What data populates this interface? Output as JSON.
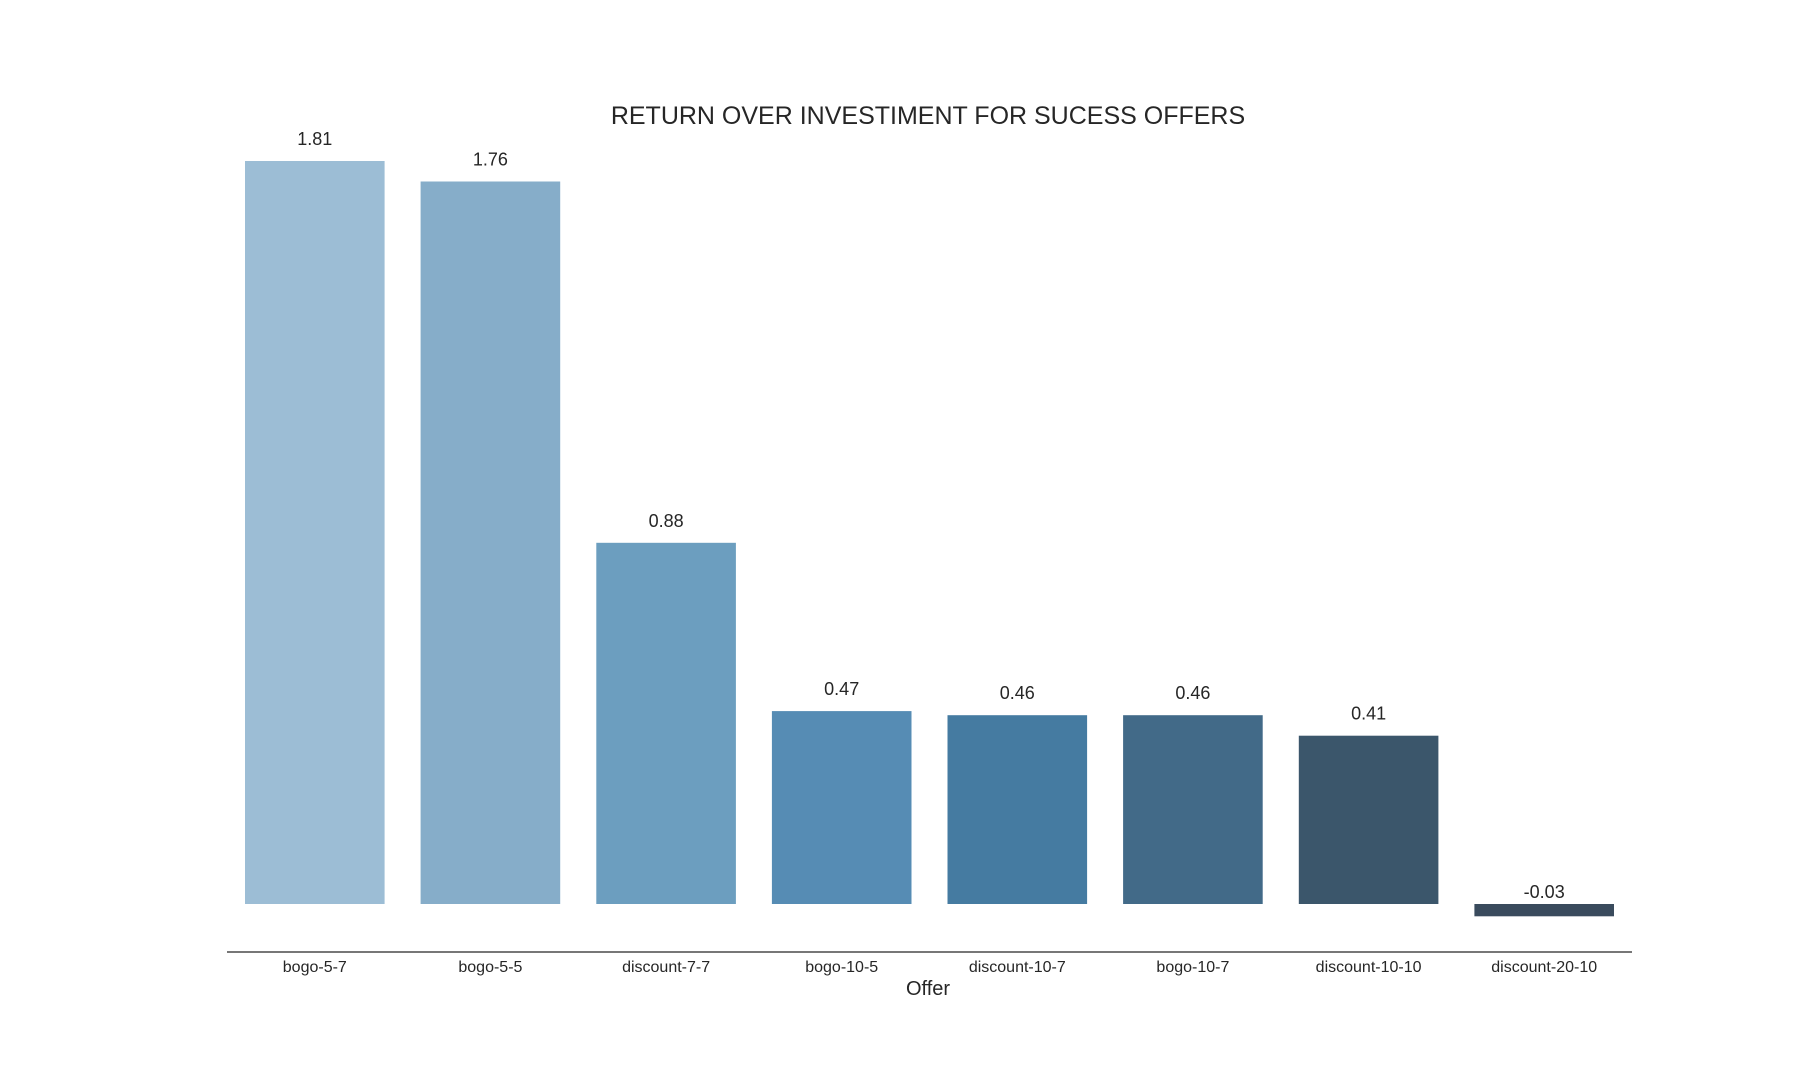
{
  "chart_data": {
    "type": "bar",
    "title": "RETURN OVER INVESTIMENT FOR SUCESS OFFERS",
    "xlabel": "Offer",
    "ylabel": "",
    "categories": [
      "bogo-5-7",
      "bogo-5-5",
      "discount-7-7",
      "bogo-10-5",
      "discount-10-7",
      "bogo-10-7",
      "discount-10-10",
      "discount-20-10"
    ],
    "values": [
      1.81,
      1.76,
      0.88,
      0.47,
      0.46,
      0.46,
      0.41,
      -0.03
    ],
    "data_labels": [
      "1.81",
      "1.76",
      "0.88",
      "0.47",
      "0.46",
      "0.46",
      "0.41",
      "-0.03"
    ],
    "colors": [
      "#9cbdd5",
      "#86adc9",
      "#6c9ebf",
      "#568cb4",
      "#457ba1",
      "#426a88",
      "#3b566b",
      "#3a4b5d"
    ],
    "ylim": [
      -0.03,
      1.81
    ],
    "grid": false,
    "legend": "none"
  }
}
